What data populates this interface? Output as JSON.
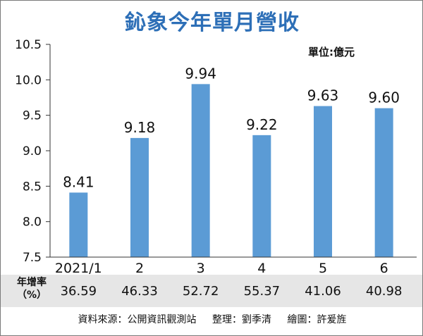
{
  "chart_data": {
    "type": "bar",
    "title": "鈊象今年單月營收",
    "unit_label": "單位:億元",
    "categories": [
      "2021/1",
      "2",
      "3",
      "4",
      "5",
      "6"
    ],
    "values": [
      8.41,
      9.18,
      9.94,
      9.22,
      9.63,
      9.6
    ],
    "value_labels": [
      "8.41",
      "9.18",
      "9.94",
      "9.22",
      "9.63",
      "9.60"
    ],
    "ylim": [
      7.5,
      10.5
    ],
    "yticks": [
      "7.5",
      "8.0",
      "8.5",
      "9.0",
      "9.5",
      "10.0",
      "10.5"
    ],
    "ytick_values": [
      7.5,
      8.0,
      8.5,
      9.0,
      9.5,
      10.0,
      10.5
    ],
    "bar_color": "#5b9bd5",
    "grid": false
  },
  "growth": {
    "label": "年增率（%）",
    "values": [
      "36.59",
      "46.33",
      "52.72",
      "55.37",
      "41.06",
      "40.98"
    ]
  },
  "footer": {
    "source": "資料來源：公開資訊觀測站",
    "editor": "整理：劉季清",
    "artist": "繪圖：許爰旌"
  }
}
